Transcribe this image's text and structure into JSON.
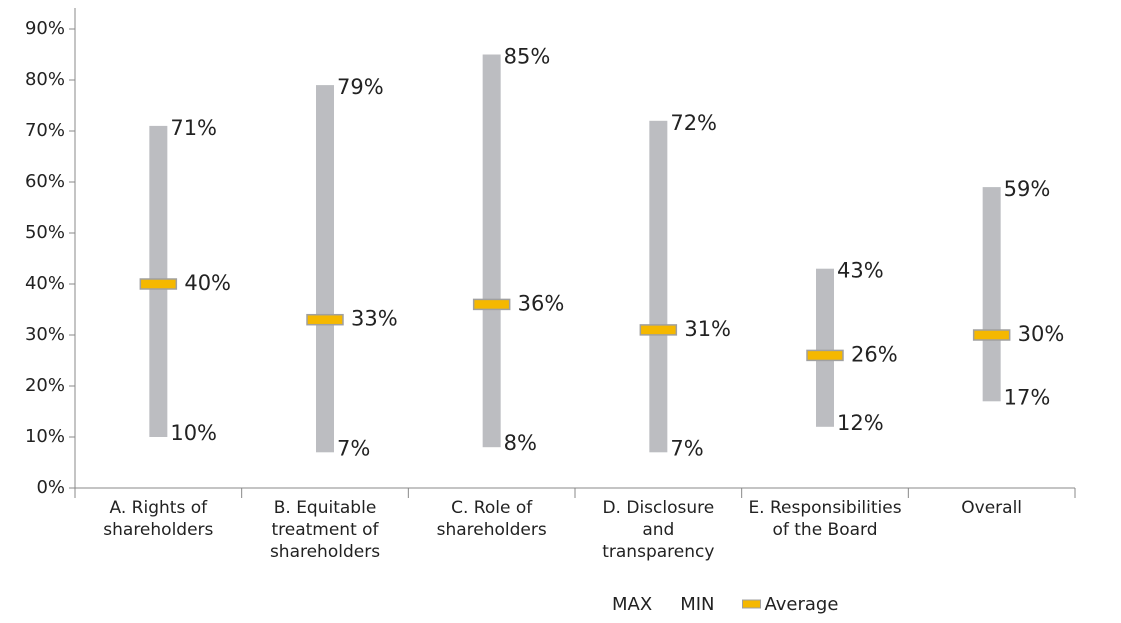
{
  "chart_data": {
    "type": "floating_bar",
    "categories": [
      "A. Rights of\nshareholders",
      "B. Equitable\ntreatment of\nshareholders",
      "C. Role of\nshareholders",
      "D. Disclosure\nand\ntransparency",
      "E. Responsibilities\nof the Board",
      "Overall"
    ],
    "series": [
      {
        "name": "MAX",
        "color": "#bcbdc1",
        "values": [
          71,
          79,
          85,
          72,
          43,
          59
        ],
        "value_labels": [
          "71%",
          "79%",
          "85%",
          "72%",
          "43%",
          "59%"
        ]
      },
      {
        "name": "MIN",
        "color": "#bcbdc1",
        "values": [
          10,
          7,
          8,
          7,
          12,
          17
        ],
        "value_labels": [
          "10%",
          "7%",
          "8%",
          "7%",
          "12%",
          "17%"
        ]
      },
      {
        "name": "Average",
        "color": "#f5b800",
        "values": [
          40,
          33,
          36,
          31,
          26,
          30
        ],
        "value_labels": [
          "40%",
          "33%",
          "36%",
          "31%",
          "26%",
          "30%"
        ]
      }
    ],
    "ylim": [
      0,
      90
    ],
    "yticks": [
      {
        "value": 0,
        "label": "0%"
      },
      {
        "value": 10,
        "label": "10%"
      },
      {
        "value": 20,
        "label": "20%"
      },
      {
        "value": 30,
        "label": "30%"
      },
      {
        "value": 40,
        "label": "40%"
      },
      {
        "value": 50,
        "label": "50%"
      },
      {
        "value": 60,
        "label": "60%"
      },
      {
        "value": 70,
        "label": "70%"
      },
      {
        "value": 80,
        "label": "80%"
      },
      {
        "value": 90,
        "label": "90%"
      }
    ],
    "legend": "bottom"
  }
}
